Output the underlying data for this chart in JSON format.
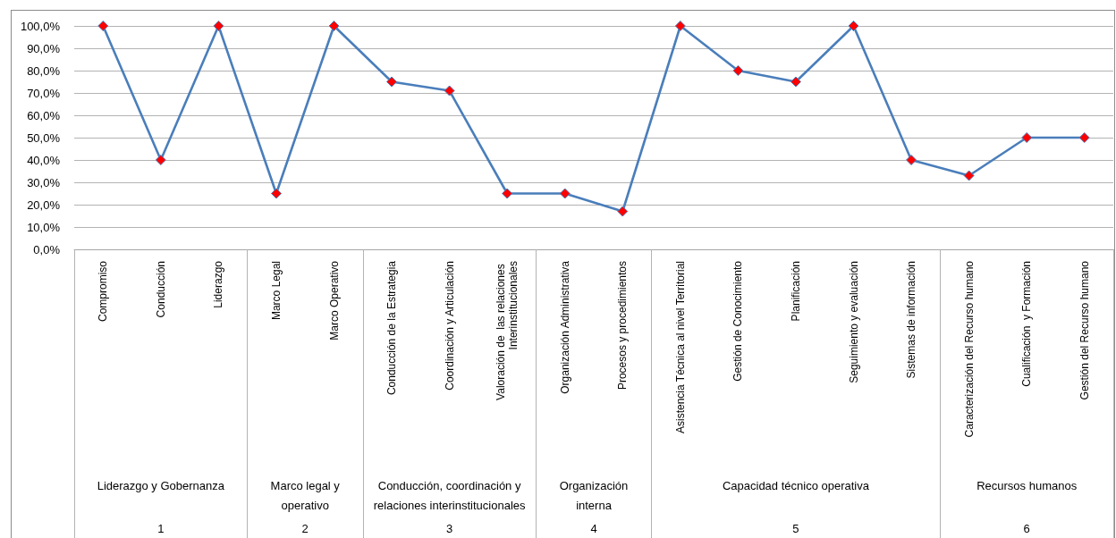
{
  "chart_data": {
    "type": "line",
    "categories": [
      "Compromiso",
      "Conducción",
      "Liderazgo",
      "Marco Legal",
      "Marco Operativo",
      "Conducción de la Estrategia",
      "Coordinación y Articulación",
      "Valoración de  las relaciones Interinstitucionales",
      "Organización Administrativa",
      "Procesos y procedimientos",
      "Asistencia Técnica al nivel Territorial",
      "Gestión de Conocimiento",
      "Planificación",
      "Seguimiento y evaluación",
      "Sistemas de información",
      "Caracterización del Recurso humano",
      "Cualificación  y Formación",
      "Gestión del Recurso humano"
    ],
    "values": [
      100,
      40,
      100,
      25,
      100,
      75,
      71,
      25,
      25,
      17,
      100,
      80,
      75,
      100,
      40,
      33,
      50,
      50
    ],
    "color": "#4a7ebb",
    "colors": [
      "#ff0000",
      "#ff0000",
      "#ff0000",
      "#ff0000",
      "#ff0000",
      "#ff0000",
      "#ff0000",
      "#ff0000",
      "#ff0000",
      "#ff0000",
      "#ff0000",
      "#ff0000",
      "#ff0000",
      "#ff0000",
      "#ff0000",
      "#ff0000",
      "#ff0000",
      "#ff0000"
    ],
    "ylim": [
      0,
      100
    ],
    "yticks": [
      {
        "value": 0,
        "label": "0,0%"
      },
      {
        "value": 10,
        "label": "10,0%"
      },
      {
        "value": 20,
        "label": "20,0%"
      },
      {
        "value": 30,
        "label": "30,0%"
      },
      {
        "value": 40,
        "label": "40,0%"
      },
      {
        "value": 50,
        "label": "50,0%"
      },
      {
        "value": 60,
        "label": "60,0%"
      },
      {
        "value": 70,
        "label": "70,0%"
      },
      {
        "value": 80,
        "label": "80,0%"
      },
      {
        "value": 90,
        "label": "90,0%"
      },
      {
        "value": 100,
        "label": "100,0%"
      }
    ],
    "grid": "y",
    "marker": "diamond",
    "line_style": "solid",
    "annotations": [
      "Liderazgo y Gobernanza",
      "Marco legal y operativo",
      "Conducción, coordinación y relaciones interinstitucionales",
      "Organización interna",
      "Capacidad técnico operativa",
      "Recursos humanos",
      "1",
      "2",
      "3",
      "4",
      "5",
      "6"
    ]
  }
}
